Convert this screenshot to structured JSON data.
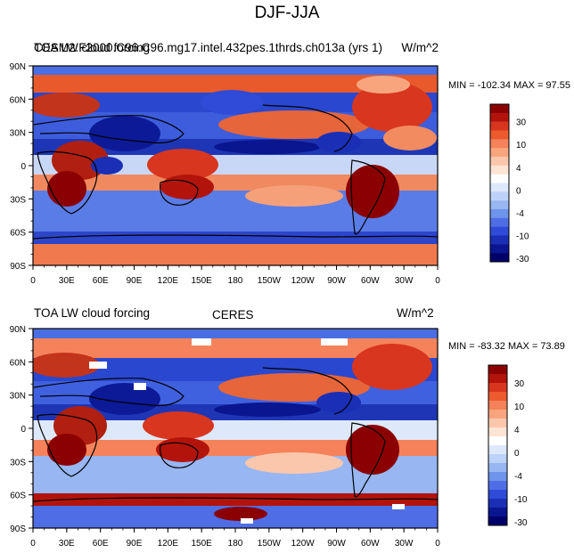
{
  "figure": {
    "title": "DJF-JJA"
  },
  "panels": [
    {
      "left_title_a": "TOA LW cloud forcing",
      "left_title_b": "CESM2.F2000.C96.C96.mg17.intel.432pes.1thrds.ch013a (yrs 1)",
      "center_title": "",
      "right_title": "W/m^2",
      "minmax": "MIN = -102.34 MAX =  97.55"
    },
    {
      "left_title": "TOA LW cloud forcing",
      "center_title": "CERES",
      "right_title": "W/m^2",
      "minmax": "MIN = -83.32 MAX =  73.89"
    }
  ],
  "axes": {
    "lat_labels": [
      "90N",
      "60N",
      "30N",
      "0",
      "30S",
      "60S",
      "90S"
    ],
    "lon_labels": [
      "0",
      "30E",
      "60E",
      "90E",
      "120E",
      "150E",
      "180",
      "150W",
      "120W",
      "90W",
      "60W",
      "30W",
      "0"
    ]
  },
  "colorbar": {
    "labels": [
      "30",
      "10",
      "4",
      "0",
      "-4",
      "-10",
      "-30"
    ],
    "colors": [
      "#8b0000",
      "#b2140c",
      "#d8361f",
      "#ec5a2e",
      "#f5825a",
      "#f8a57e",
      "#fbc7ac",
      "#fde4d4",
      "#ffffff",
      "#dde9fb",
      "#bdd2f7",
      "#97b6f2",
      "#6e94eb",
      "#4f6ee6",
      "#2f4bd7",
      "#1a2fb5",
      "#0a1590",
      "#00006b"
    ]
  },
  "palette": {
    "land_outline": "#000000",
    "text": "#000000"
  }
}
